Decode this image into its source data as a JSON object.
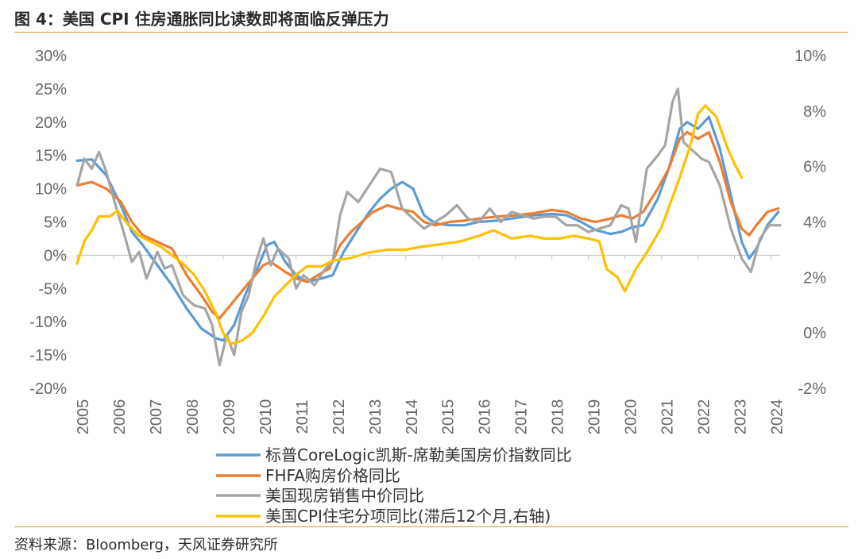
{
  "figure": {
    "title": "图 4：美国 CPI 住房通胀同比读数即将面临反弹压力",
    "source": "资料来源：Bloomberg，天风证券研究所"
  },
  "chart_data": {
    "type": "line",
    "xlim": [
      2005,
      2024.25
    ],
    "ylim_left": [
      -20,
      30
    ],
    "ylim_right": [
      -2,
      10
    ],
    "y_left_ticks": [
      "-20%",
      "-15%",
      "-10%",
      "-5%",
      "0%",
      "5%",
      "10%",
      "15%",
      "20%",
      "25%",
      "30%"
    ],
    "y_right_ticks": [
      "-2%",
      "0%",
      "2%",
      "4%",
      "6%",
      "8%",
      "10%"
    ],
    "x_ticks": [
      "2005",
      "2006",
      "2007",
      "2008",
      "2009",
      "2010",
      "2011",
      "2012",
      "2013",
      "2014",
      "2015",
      "2016",
      "2017",
      "2018",
      "2019",
      "2020",
      "2021",
      "2022",
      "2023",
      "2024"
    ],
    "legend_position": "bottom",
    "series": [
      {
        "name": "标普CoreLogic凯斯-席勒美国房价指数同比",
        "color": "#5b9bd5",
        "axis": "left",
        "points": [
          [
            2005.0,
            14.2
          ],
          [
            2005.4,
            14.4
          ],
          [
            2005.8,
            12.0
          ],
          [
            2006.2,
            7.5
          ],
          [
            2006.5,
            3.5
          ],
          [
            2006.8,
            1.5
          ],
          [
            2007.2,
            -1.5
          ],
          [
            2007.6,
            -4.5
          ],
          [
            2008.0,
            -8.0
          ],
          [
            2008.4,
            -11.0
          ],
          [
            2008.8,
            -12.5
          ],
          [
            2009.0,
            -12.8
          ],
          [
            2009.3,
            -10.5
          ],
          [
            2009.6,
            -6.0
          ],
          [
            2009.9,
            -2.5
          ],
          [
            2010.2,
            1.5
          ],
          [
            2010.4,
            2.0
          ],
          [
            2010.7,
            -1.0
          ],
          [
            2011.0,
            -3.0
          ],
          [
            2011.3,
            -4.0
          ],
          [
            2011.7,
            -3.5
          ],
          [
            2012.0,
            -3.0
          ],
          [
            2012.3,
            0.5
          ],
          [
            2012.7,
            4.0
          ],
          [
            2013.0,
            6.5
          ],
          [
            2013.3,
            8.5
          ],
          [
            2013.6,
            10.0
          ],
          [
            2013.9,
            11.0
          ],
          [
            2014.2,
            10.0
          ],
          [
            2014.5,
            6.0
          ],
          [
            2014.8,
            4.8
          ],
          [
            2015.2,
            4.5
          ],
          [
            2015.6,
            4.5
          ],
          [
            2016.0,
            5.0
          ],
          [
            2016.5,
            5.2
          ],
          [
            2017.0,
            5.6
          ],
          [
            2017.5,
            6.0
          ],
          [
            2018.0,
            6.2
          ],
          [
            2018.4,
            6.0
          ],
          [
            2018.8,
            5.0
          ],
          [
            2019.2,
            3.8
          ],
          [
            2019.6,
            3.2
          ],
          [
            2019.9,
            3.5
          ],
          [
            2020.2,
            4.2
          ],
          [
            2020.5,
            4.5
          ],
          [
            2020.9,
            8.5
          ],
          [
            2021.2,
            13.0
          ],
          [
            2021.5,
            19.0
          ],
          [
            2021.7,
            20.0
          ],
          [
            2022.0,
            19.0
          ],
          [
            2022.3,
            20.8
          ],
          [
            2022.6,
            16.0
          ],
          [
            2022.9,
            9.0
          ],
          [
            2023.2,
            2.0
          ],
          [
            2023.4,
            -0.5
          ],
          [
            2023.6,
            1.0
          ],
          [
            2023.9,
            4.5
          ],
          [
            2024.2,
            6.5
          ]
        ]
      },
      {
        "name": "FHFA购房价格同比",
        "color": "#ed7d31",
        "axis": "left",
        "points": [
          [
            2005.0,
            10.5
          ],
          [
            2005.4,
            11.0
          ],
          [
            2005.8,
            10.0
          ],
          [
            2006.2,
            8.0
          ],
          [
            2006.5,
            5.0
          ],
          [
            2006.8,
            3.0
          ],
          [
            2007.2,
            2.0
          ],
          [
            2007.6,
            1.0
          ],
          [
            2008.0,
            -3.0
          ],
          [
            2008.4,
            -6.0
          ],
          [
            2008.7,
            -8.5
          ],
          [
            2008.9,
            -9.5
          ],
          [
            2009.2,
            -7.5
          ],
          [
            2009.5,
            -5.5
          ],
          [
            2009.8,
            -3.5
          ],
          [
            2010.1,
            -1.5
          ],
          [
            2010.3,
            -1.0
          ],
          [
            2010.7,
            -2.5
          ],
          [
            2011.0,
            -3.5
          ],
          [
            2011.3,
            -4.0
          ],
          [
            2011.6,
            -3.0
          ],
          [
            2011.9,
            -2.0
          ],
          [
            2012.2,
            1.5
          ],
          [
            2012.5,
            3.5
          ],
          [
            2012.8,
            5.0
          ],
          [
            2013.1,
            6.5
          ],
          [
            2013.5,
            7.5
          ],
          [
            2013.8,
            7.0
          ],
          [
            2014.2,
            6.5
          ],
          [
            2014.5,
            5.0
          ],
          [
            2014.8,
            4.5
          ],
          [
            2015.2,
            5.0
          ],
          [
            2015.6,
            5.2
          ],
          [
            2016.0,
            5.5
          ],
          [
            2016.5,
            5.8
          ],
          [
            2017.0,
            6.0
          ],
          [
            2017.5,
            6.3
          ],
          [
            2018.0,
            6.8
          ],
          [
            2018.4,
            6.5
          ],
          [
            2018.8,
            5.5
          ],
          [
            2019.2,
            5.0
          ],
          [
            2019.6,
            5.5
          ],
          [
            2019.9,
            6.0
          ],
          [
            2020.2,
            5.5
          ],
          [
            2020.5,
            6.5
          ],
          [
            2020.9,
            10.0
          ],
          [
            2021.2,
            13.0
          ],
          [
            2021.5,
            17.5
          ],
          [
            2021.7,
            18.5
          ],
          [
            2022.0,
            17.5
          ],
          [
            2022.3,
            18.5
          ],
          [
            2022.6,
            14.0
          ],
          [
            2022.9,
            8.0
          ],
          [
            2023.2,
            4.0
          ],
          [
            2023.4,
            3.0
          ],
          [
            2023.6,
            4.5
          ],
          [
            2023.9,
            6.5
          ],
          [
            2024.2,
            7.0
          ]
        ]
      },
      {
        "name": "美国现房销售中价同比",
        "color": "#a5a5a5",
        "axis": "left",
        "points": [
          [
            2005.0,
            10.5
          ],
          [
            2005.2,
            14.5
          ],
          [
            2005.4,
            13.0
          ],
          [
            2005.6,
            15.5
          ],
          [
            2005.8,
            12.5
          ],
          [
            2006.0,
            8.5
          ],
          [
            2006.3,
            3.0
          ],
          [
            2006.5,
            -1.0
          ],
          [
            2006.7,
            0.5
          ],
          [
            2006.9,
            -3.5
          ],
          [
            2007.2,
            0.5
          ],
          [
            2007.4,
            -2.0
          ],
          [
            2007.6,
            -1.5
          ],
          [
            2007.9,
            -6.0
          ],
          [
            2008.2,
            -7.5
          ],
          [
            2008.5,
            -8.0
          ],
          [
            2008.7,
            -10.5
          ],
          [
            2008.9,
            -16.5
          ],
          [
            2009.1,
            -12.0
          ],
          [
            2009.3,
            -15.0
          ],
          [
            2009.5,
            -8.5
          ],
          [
            2009.7,
            -6.0
          ],
          [
            2009.9,
            -1.0
          ],
          [
            2010.1,
            2.5
          ],
          [
            2010.3,
            -1.5
          ],
          [
            2010.5,
            1.0
          ],
          [
            2010.8,
            -0.5
          ],
          [
            2011.0,
            -5.0
          ],
          [
            2011.2,
            -3.0
          ],
          [
            2011.5,
            -4.5
          ],
          [
            2011.8,
            -2.0
          ],
          [
            2012.0,
            -1.0
          ],
          [
            2012.2,
            6.0
          ],
          [
            2012.4,
            9.5
          ],
          [
            2012.7,
            8.0
          ],
          [
            2013.0,
            10.5
          ],
          [
            2013.3,
            13.0
          ],
          [
            2013.6,
            12.5
          ],
          [
            2013.9,
            7.0
          ],
          [
            2014.2,
            5.5
          ],
          [
            2014.5,
            4.0
          ],
          [
            2014.8,
            5.0
          ],
          [
            2015.1,
            6.0
          ],
          [
            2015.4,
            7.5
          ],
          [
            2015.7,
            5.5
          ],
          [
            2016.0,
            5.0
          ],
          [
            2016.3,
            7.0
          ],
          [
            2016.6,
            5.0
          ],
          [
            2016.9,
            6.5
          ],
          [
            2017.2,
            6.0
          ],
          [
            2017.5,
            5.5
          ],
          [
            2017.8,
            5.8
          ],
          [
            2018.1,
            5.8
          ],
          [
            2018.4,
            4.5
          ],
          [
            2018.7,
            4.5
          ],
          [
            2019.0,
            3.5
          ],
          [
            2019.3,
            4.0
          ],
          [
            2019.6,
            4.5
          ],
          [
            2019.9,
            7.5
          ],
          [
            2020.1,
            7.0
          ],
          [
            2020.3,
            2.0
          ],
          [
            2020.6,
            13.0
          ],
          [
            2020.9,
            15.0
          ],
          [
            2021.1,
            16.5
          ],
          [
            2021.3,
            23.0
          ],
          [
            2021.45,
            25.0
          ],
          [
            2021.6,
            17.0
          ],
          [
            2021.9,
            15.5
          ],
          [
            2022.1,
            14.5
          ],
          [
            2022.3,
            14.0
          ],
          [
            2022.6,
            10.5
          ],
          [
            2022.9,
            4.0
          ],
          [
            2023.2,
            -0.5
          ],
          [
            2023.45,
            -2.5
          ],
          [
            2023.7,
            2.5
          ],
          [
            2023.95,
            4.5
          ],
          [
            2024.25,
            4.5
          ]
        ]
      },
      {
        "name": "美国CPI住宅分项同比(滞后12个月,右轴)",
        "color": "#ffc000",
        "axis": "right",
        "points": [
          [
            2005.0,
            2.5
          ],
          [
            2005.2,
            3.3
          ],
          [
            2005.4,
            3.7
          ],
          [
            2005.6,
            4.2
          ],
          [
            2005.9,
            4.2
          ],
          [
            2006.1,
            4.4
          ],
          [
            2006.4,
            3.9
          ],
          [
            2006.7,
            3.5
          ],
          [
            2007.0,
            3.3
          ],
          [
            2007.3,
            3.1
          ],
          [
            2007.6,
            2.8
          ],
          [
            2007.9,
            2.5
          ],
          [
            2008.2,
            2.1
          ],
          [
            2008.5,
            1.5
          ],
          [
            2008.8,
            0.7
          ],
          [
            2009.0,
            0.0
          ],
          [
            2009.2,
            -0.4
          ],
          [
            2009.5,
            -0.3
          ],
          [
            2009.8,
            0.0
          ],
          [
            2010.1,
            0.6
          ],
          [
            2010.4,
            1.3
          ],
          [
            2010.7,
            1.7
          ],
          [
            2011.0,
            2.1
          ],
          [
            2011.3,
            2.4
          ],
          [
            2011.7,
            2.4
          ],
          [
            2012.0,
            2.6
          ],
          [
            2012.5,
            2.7
          ],
          [
            2013.0,
            2.9
          ],
          [
            2013.5,
            3.0
          ],
          [
            2014.0,
            3.0
          ],
          [
            2014.4,
            3.1
          ],
          [
            2015.0,
            3.2
          ],
          [
            2015.5,
            3.3
          ],
          [
            2016.0,
            3.5
          ],
          [
            2016.4,
            3.7
          ],
          [
            2016.9,
            3.4
          ],
          [
            2017.4,
            3.5
          ],
          [
            2017.8,
            3.4
          ],
          [
            2018.2,
            3.4
          ],
          [
            2018.6,
            3.5
          ],
          [
            2019.0,
            3.4
          ],
          [
            2019.3,
            3.3
          ],
          [
            2019.5,
            2.3
          ],
          [
            2019.8,
            2.0
          ],
          [
            2020.0,
            1.5
          ],
          [
            2020.3,
            2.3
          ],
          [
            2020.6,
            2.9
          ],
          [
            2021.0,
            3.8
          ],
          [
            2021.5,
            5.6
          ],
          [
            2021.8,
            6.8
          ],
          [
            2022.0,
            7.9
          ],
          [
            2022.2,
            8.2
          ],
          [
            2022.5,
            7.8
          ],
          [
            2022.8,
            6.7
          ],
          [
            2023.0,
            6.1
          ],
          [
            2023.2,
            5.6
          ]
        ]
      }
    ]
  }
}
